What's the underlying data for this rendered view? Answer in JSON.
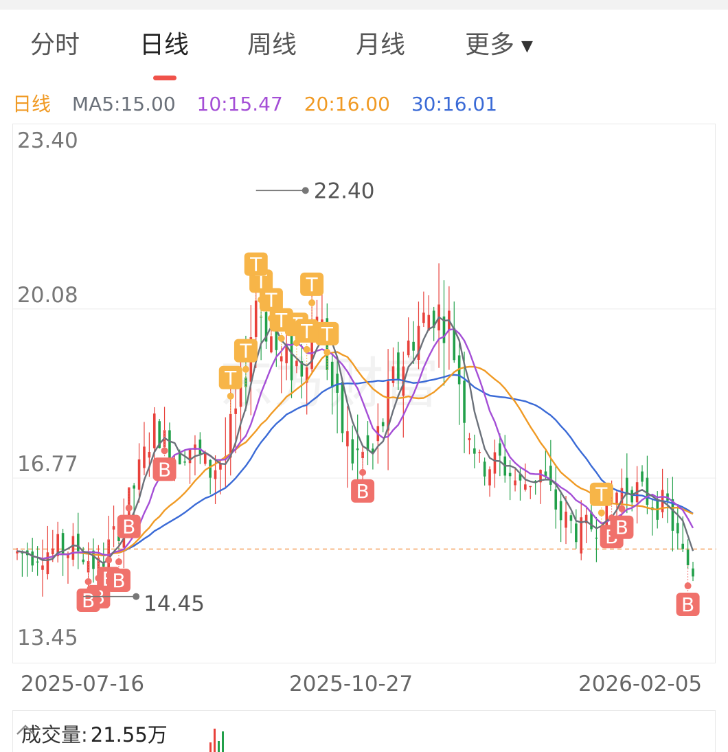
{
  "tabs": [
    {
      "label": "分时",
      "active": false
    },
    {
      "label": "日线",
      "active": true
    },
    {
      "label": "周线",
      "active": false
    },
    {
      "label": "月线",
      "active": false
    },
    {
      "label": "更多",
      "active": false,
      "has_caret": true
    }
  ],
  "ma_legend": {
    "period": "日线",
    "ma5": "MA5:15.00",
    "ma10": "10:15.47",
    "ma20": "20:16.00",
    "ma30": "30:16.01"
  },
  "colors": {
    "up": "#e8413b",
    "down": "#22a04a",
    "ma5": "#6b717a",
    "ma10": "#a44ed6",
    "ma20": "#f09a24",
    "ma30": "#3a6ad6",
    "period": "#f09a24",
    "marker_t": "#f7b548",
    "marker_b": "#f0716b",
    "ref_line": "#f5a05a"
  },
  "chart_data": {
    "type": "candlestick",
    "y_ticks": [
      "23.40",
      "20.08",
      "16.77",
      "13.45"
    ],
    "ylim": [
      13.45,
      23.4
    ],
    "x_labels": [
      "2025-07-16",
      "2025-10-27",
      "2026-02-05"
    ],
    "max_annotation": "22.40",
    "min_annotation": "14.45",
    "reference_price": 15.38,
    "marker_t_text": "T",
    "marker_b_text": "B",
    "watermark": "东方财富"
  },
  "volume": {
    "label": "成交量:",
    "value": "21.55万"
  },
  "icons": {
    "collapse": "chevron-up-icon",
    "more_caret": "triangle-down-icon"
  }
}
